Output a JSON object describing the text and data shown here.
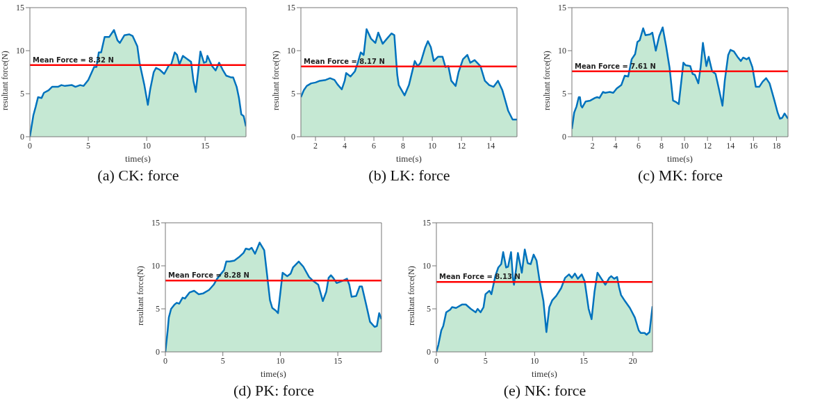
{
  "chart_data": [
    {
      "type": "area",
      "title": "(a) CK: force",
      "xlabel": "time(s)",
      "ylabel": "resultant force(N)",
      "color": "#0072bd",
      "xlim": [
        0,
        18.5
      ],
      "xticks": [
        0,
        5,
        10,
        15
      ],
      "ylim": [
        0,
        15
      ],
      "yticks": [
        0,
        5,
        10,
        15
      ],
      "x": [
        0,
        0.3,
        0.5,
        0.7,
        1.0,
        1.2,
        1.6,
        1.9,
        2.4,
        2.7,
        3.0,
        3.6,
        3.9,
        4.3,
        4.6,
        5.0,
        5.3,
        5.5,
        5.7,
        5.9,
        6.1,
        6.4,
        6.8,
        7.2,
        7.5,
        7.7,
        8.1,
        8.5,
        8.8,
        9.2,
        9.4,
        9.8,
        10.1,
        10.3,
        10.6,
        10.8,
        11.1,
        11.5,
        11.9,
        12.1,
        12.4,
        12.6,
        12.8,
        13.1,
        13.4,
        13.8,
        14.0,
        14.2,
        14.4,
        14.6,
        14.9,
        15.1,
        15.2,
        15.6,
        15.9,
        16.2,
        16.5,
        16.8,
        17.2,
        17.4,
        17.7,
        17.9,
        18.1,
        18.3,
        18.5
      ],
      "values": [
        0,
        2.5,
        3.5,
        4.6,
        4.5,
        5.1,
        5.4,
        5.8,
        5.8,
        6.0,
        5.9,
        6.0,
        5.8,
        6.0,
        5.9,
        6.6,
        7.5,
        8.1,
        8.1,
        9.8,
        9.8,
        11.6,
        11.6,
        12.4,
        11.2,
        10.9,
        11.8,
        11.9,
        11.7,
        10.5,
        8.5,
        6,
        3.7,
        5.5,
        7.5,
        8,
        7.8,
        7.3,
        8.3,
        8.4,
        9.8,
        9.5,
        8.4,
        9.4,
        9.1,
        8.7,
        6.5,
        5.2,
        7.5,
        9.9,
        8.6,
        8.7,
        9.4,
        8.2,
        7.7,
        8.6,
        7.8,
        7.1,
        6.9,
        6.9,
        5.8,
        4.5,
        2.6,
        2.4,
        1.2
      ],
      "ref_lines": [
        {
          "axis": "y",
          "value": 8.32,
          "label": "Mean Force = 8.32 N",
          "color": "#ff0000"
        }
      ]
    },
    {
      "type": "area",
      "title": "(b) LK: force",
      "xlabel": "time(s)",
      "ylabel": "resultant force(N)",
      "color": "#0072bd",
      "xlim": [
        1,
        15.8
      ],
      "xticks": [
        2,
        4,
        6,
        8,
        10,
        12,
        14
      ],
      "ylim": [
        0,
        15
      ],
      "yticks": [
        0,
        5,
        10,
        15
      ],
      "x": [
        1,
        1.2,
        1.4,
        1.7,
        2.0,
        2.3,
        2.7,
        3.0,
        3.3,
        3.5,
        3.8,
        4.0,
        4.1,
        4.4,
        4.7,
        4.9,
        5.1,
        5.3,
        5.5,
        5.8,
        6.1,
        6.3,
        6.6,
        6.9,
        7.2,
        7.4,
        7.6,
        7.7,
        8.1,
        8.4,
        8.8,
        9.0,
        9.2,
        9.5,
        9.7,
        9.9,
        10.1,
        10.4,
        10.7,
        10.9,
        11.1,
        11.3,
        11.6,
        11.8,
        12.1,
        12.4,
        12.6,
        12.9,
        13.3,
        13.6,
        13.9,
        14.2,
        14.5,
        14.8,
        15.0,
        15.2,
        15.5,
        15.8
      ],
      "values": [
        4.6,
        5.4,
        5.9,
        6.2,
        6.3,
        6.5,
        6.6,
        6.8,
        6.6,
        6.1,
        5.5,
        6.5,
        7.4,
        7.0,
        7.6,
        8.6,
        9.8,
        9.5,
        12.5,
        11.4,
        10.9,
        12.1,
        10.8,
        11.4,
        12.0,
        11.8,
        7.2,
        6.0,
        4.8,
        6.0,
        8.8,
        8.2,
        8.6,
        10.3,
        11.1,
        10.4,
        8.8,
        9.3,
        9.3,
        8.1,
        8.2,
        6.5,
        5.9,
        7.5,
        9.0,
        9.5,
        8.6,
        8.9,
        8.2,
        6.5,
        6.0,
        5.8,
        6.5,
        5.4,
        4.2,
        3.0,
        2.0,
        2.0
      ],
      "ref_lines": [
        {
          "axis": "y",
          "value": 8.17,
          "label": "Mean Force = 8.17 N",
          "color": "#ff0000"
        }
      ]
    },
    {
      "type": "area",
      "title": "(c) MK: force",
      "xlabel": "time(s)",
      "ylabel": "resultant force(N)",
      "color": "#0072bd",
      "xlim": [
        0.2,
        19
      ],
      "xticks": [
        2,
        4,
        6,
        8,
        10,
        12,
        14,
        16,
        18
      ],
      "ylim": [
        0,
        15
      ],
      "yticks": [
        0,
        5,
        10,
        15
      ],
      "x": [
        0.2,
        0.4,
        0.6,
        0.8,
        0.9,
        1.0,
        1.1,
        1.4,
        1.8,
        2.2,
        2.4,
        2.6,
        2.9,
        3.1,
        3.5,
        3.8,
        4.1,
        4.5,
        4.8,
        5.1,
        5.4,
        5.7,
        5.9,
        6.1,
        6.4,
        6.6,
        7.0,
        7.2,
        7.5,
        7.8,
        8.1,
        8.4,
        8.7,
        9.0,
        9.3,
        9.5,
        9.9,
        10.1,
        10.5,
        10.7,
        10.9,
        11.2,
        11.4,
        11.6,
        11.9,
        12.1,
        12.4,
        12.7,
        13.0,
        13.3,
        13.5,
        13.8,
        14.0,
        14.3,
        14.6,
        14.9,
        15.1,
        15.4,
        15.6,
        15.9,
        16.2,
        16.5,
        16.8,
        17.1,
        17.4,
        17.8,
        18.1,
        18.3,
        18.5,
        18.7,
        19.0
      ],
      "values": [
        0.9,
        2.8,
        3.5,
        4.6,
        4.6,
        3.6,
        3.4,
        4.1,
        4.2,
        4.5,
        4.6,
        4.5,
        5.2,
        5.1,
        5.2,
        5.1,
        5.6,
        6.0,
        7.1,
        7.0,
        9.0,
        9.6,
        11.0,
        11.2,
        12.6,
        11.8,
        11.9,
        12.1,
        10.0,
        11.7,
        12.7,
        10.5,
        8.0,
        4.2,
        4.0,
        3.8,
        8.6,
        8.3,
        8.2,
        7.3,
        7.2,
        6.2,
        8.1,
        10.9,
        8.2,
        9.3,
        7.6,
        7.3,
        5.5,
        3.6,
        6.5,
        9.5,
        10.1,
        9.9,
        9.3,
        8.8,
        9.2,
        9.0,
        9.2,
        8.1,
        5.8,
        5.8,
        6.4,
        6.8,
        6.2,
        4.3,
        2.8,
        2.1,
        2.2,
        2.7,
        2.1
      ],
      "ref_lines": [
        {
          "axis": "y",
          "value": 7.61,
          "label": "Mean Force = 7.61 N",
          "color": "#ff0000"
        }
      ]
    },
    {
      "type": "area",
      "title": "(d) PK: force",
      "xlabel": "time(s)",
      "ylabel": "resultant force(N)",
      "color": "#0072bd",
      "xlim": [
        0,
        18.8
      ],
      "xticks": [
        0,
        5,
        10,
        15
      ],
      "ylim": [
        0,
        15
      ],
      "yticks": [
        0,
        5,
        10,
        15
      ],
      "x": [
        0,
        0.2,
        0.3,
        0.5,
        0.8,
        1.0,
        1.2,
        1.5,
        1.7,
        2.1,
        2.5,
        2.9,
        3.3,
        3.8,
        4.2,
        4.5,
        4.8,
        5.1,
        5.3,
        5.6,
        6.0,
        6.4,
        6.8,
        7.0,
        7.3,
        7.5,
        7.8,
        8.2,
        8.6,
        8.8,
        9.1,
        9.3,
        9.6,
        9.8,
        10.2,
        10.4,
        10.6,
        10.9,
        11.1,
        11.6,
        12.0,
        12.5,
        12.9,
        13.3,
        13.7,
        14.0,
        14.2,
        14.4,
        14.6,
        14.9,
        15.3,
        15.8,
        16.0,
        16.2,
        16.6,
        16.9,
        17.1,
        17.5,
        17.8,
        18.2,
        18.4,
        18.6,
        18.8
      ],
      "values": [
        0,
        2.5,
        4,
        5,
        5.5,
        5.7,
        5.6,
        6.3,
        6.2,
        6.9,
        7.1,
        6.7,
        6.8,
        7.2,
        7.8,
        8.5,
        9.0,
        9.5,
        10.5,
        10.5,
        10.6,
        11.0,
        11.5,
        12.0,
        11.9,
        12.1,
        11.4,
        12.7,
        11.8,
        9.5,
        6.0,
        5.1,
        4.8,
        4.5,
        9.2,
        9.0,
        8.8,
        9.1,
        9.8,
        10.5,
        9.9,
        8.7,
        8.2,
        7.8,
        5.9,
        7.0,
        8.6,
        8.9,
        8.6,
        8.0,
        8.2,
        8.5,
        7.8,
        6.4,
        6.5,
        7.6,
        7.6,
        5.3,
        3.5,
        2.9,
        3.0,
        4.5,
        3.8
      ],
      "ref_lines": [
        {
          "axis": "y",
          "value": 8.28,
          "label": "Mean Force = 8.28 N",
          "color": "#ff0000"
        }
      ]
    },
    {
      "type": "area",
      "title": "(e) NK: force",
      "xlabel": "time(s)",
      "ylabel": "resultant force(N)",
      "color": "#0072bd",
      "xlim": [
        0,
        22
      ],
      "xticks": [
        0,
        5,
        10,
        15,
        20
      ],
      "ylim": [
        0,
        15
      ],
      "yticks": [
        0,
        5,
        10,
        15
      ],
      "x": [
        0,
        0.2,
        0.5,
        0.7,
        1.0,
        1.4,
        1.6,
        2.0,
        2.6,
        3.0,
        3.5,
        4.0,
        4.2,
        4.5,
        4.8,
        5.0,
        5.4,
        5.6,
        6.0,
        6.3,
        6.6,
        6.8,
        7.1,
        7.3,
        7.6,
        7.8,
        7.9,
        8.1,
        8.3,
        8.7,
        9.0,
        9.3,
        9.6,
        9.9,
        10.2,
        10.5,
        10.9,
        11.1,
        11.2,
        11.5,
        11.8,
        12.2,
        12.7,
        13.1,
        13.5,
        13.8,
        14.1,
        14.4,
        14.8,
        15.1,
        15.5,
        15.8,
        16.1,
        16.4,
        16.8,
        17.2,
        17.6,
        17.8,
        18.1,
        18.4,
        18.6,
        18.8,
        19.2,
        19.7,
        20.2,
        20.6,
        20.8,
        21.2,
        21.4,
        21.7,
        22.0
      ],
      "values": [
        0,
        0.8,
        2.5,
        3.0,
        4.6,
        4.9,
        5.2,
        5.1,
        5.5,
        5.5,
        5.0,
        4.6,
        5.0,
        4.6,
        5.2,
        6.7,
        7.1,
        6.7,
        8.8,
        9.8,
        10.2,
        11.6,
        9.8,
        9.9,
        11.6,
        8.5,
        7.8,
        9.5,
        11.5,
        9.2,
        11.9,
        10.3,
        10.2,
        11.3,
        10.6,
        8.3,
        5.9,
        3.5,
        2.3,
        5.2,
        6.0,
        6.5,
        7.4,
        8.6,
        9.0,
        8.6,
        9.1,
        8.5,
        9.0,
        8.2,
        5.0,
        3.8,
        7.0,
        9.2,
        8.5,
        7.8,
        8.6,
        8.8,
        8.5,
        8.7,
        7.5,
        6.6,
        5.9,
        5.1,
        4.0,
        2.5,
        2.2,
        2.2,
        2.0,
        2.3,
        5.3
      ],
      "ref_lines": [
        {
          "axis": "y",
          "value": 8.13,
          "label": "Mean Force = 8.13 N",
          "color": "#ff0000"
        }
      ]
    }
  ]
}
